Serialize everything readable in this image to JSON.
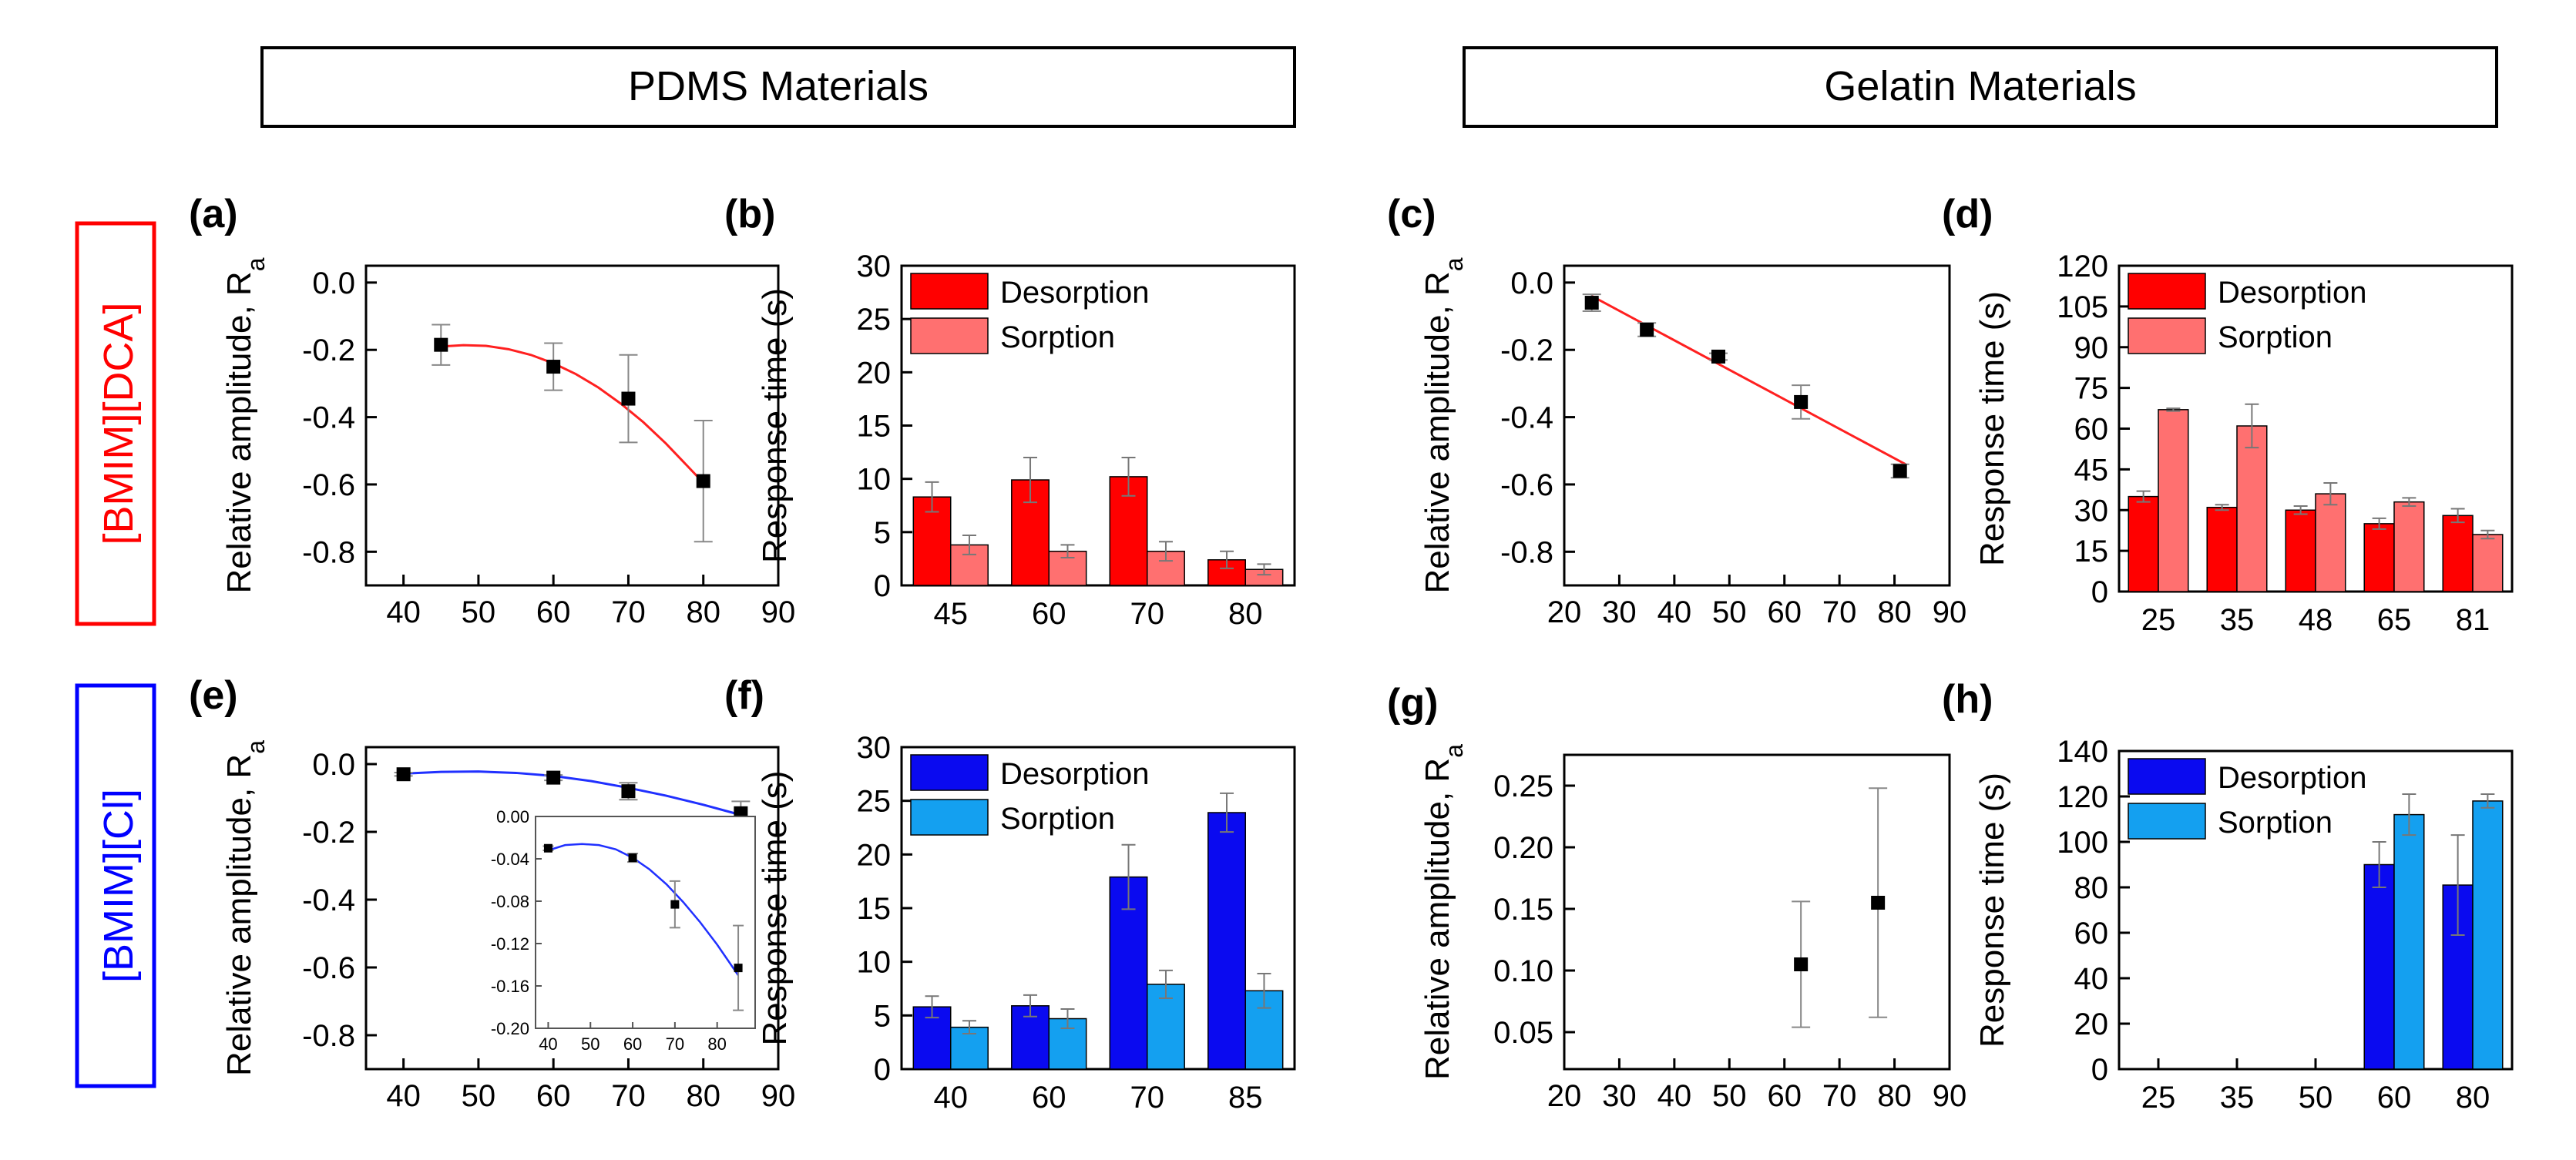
{
  "headers": {
    "pdms": "PDMS Materials",
    "gelatin": "Gelatin Materials"
  },
  "row_labels": {
    "top": "[BMIM][DCA]",
    "bottom": "[BMIM][Cl]"
  },
  "colors": {
    "desorption_red": "#ff0000",
    "sorption_red": "#ff7070",
    "desorption_blue": "#0a0af0",
    "sorption_blue": "#14a0f0",
    "fit_red": "#ff2020",
    "fit_blue": "#2030ff",
    "row_top": "#ff0000",
    "row_bottom": "#0000ff"
  },
  "chart_data": [
    {
      "id": "a",
      "label": "(a)",
      "type": "scatter",
      "ylabel": "Relative amplitude, R",
      "ylabel_sub": "a",
      "xlim": [
        35,
        90
      ],
      "ylim": [
        -0.9,
        0.05
      ],
      "xticks": [
        40,
        50,
        60,
        70,
        80,
        90
      ],
      "yticks": [
        0.0,
        -0.2,
        -0.4,
        -0.6,
        -0.8
      ],
      "ytick_labels": [
        "0.0",
        "-0.2",
        "-0.4",
        "-0.6",
        "-0.8"
      ],
      "points": [
        {
          "x": 45,
          "y": -0.185,
          "err": 0.06
        },
        {
          "x": 60,
          "y": -0.25,
          "err": 0.07
        },
        {
          "x": 70,
          "y": -0.345,
          "err": 0.13
        },
        {
          "x": 80,
          "y": -0.59,
          "err": 0.18
        }
      ],
      "fit": {
        "color_key": "fit_red",
        "x": [
          45,
          48,
          51,
          54,
          57,
          60,
          63,
          66,
          69,
          72,
          75,
          78,
          80
        ],
        "y": [
          -0.19,
          -0.186,
          -0.188,
          -0.198,
          -0.215,
          -0.24,
          -0.272,
          -0.312,
          -0.36,
          -0.415,
          -0.478,
          -0.548,
          -0.595
        ]
      }
    },
    {
      "id": "b",
      "label": "(b)",
      "type": "bar",
      "ylabel": "Response time (s)",
      "ylim": [
        0,
        30
      ],
      "yticks": [
        0,
        5,
        10,
        15,
        20,
        25,
        30
      ],
      "ytick_labels": [
        "0",
        "5",
        "10",
        "15",
        "20",
        "25",
        "30"
      ],
      "categories": [
        "45",
        "60",
        "70",
        "80"
      ],
      "series": [
        {
          "name": "Desorption",
          "color_key": "desorption_red",
          "values": [
            8.3,
            9.9,
            10.2,
            2.4
          ],
          "errors": [
            1.4,
            2.1,
            1.8,
            0.8
          ]
        },
        {
          "name": "Sorption",
          "color_key": "sorption_red",
          "values": [
            3.8,
            3.2,
            3.2,
            1.5
          ],
          "errors": [
            0.9,
            0.6,
            0.9,
            0.5
          ]
        }
      ],
      "legend": "top-left"
    },
    {
      "id": "c",
      "label": "(c)",
      "type": "scatter",
      "ylabel": "Relative amplitude, R",
      "ylabel_sub": "a",
      "xlim": [
        20,
        90
      ],
      "ylim": [
        -0.9,
        0.05
      ],
      "xticks": [
        20,
        30,
        40,
        50,
        60,
        70,
        80,
        90
      ],
      "yticks": [
        0.0,
        -0.2,
        -0.4,
        -0.6,
        -0.8
      ],
      "ytick_labels": [
        "0.0",
        "-0.2",
        "-0.4",
        "-0.6",
        "-0.8"
      ],
      "points": [
        {
          "x": 25,
          "y": -0.06,
          "err": 0.025
        },
        {
          "x": 35,
          "y": -0.14,
          "err": 0.02
        },
        {
          "x": 48,
          "y": -0.22,
          "err": 0.01
        },
        {
          "x": 63,
          "y": -0.355,
          "err": 0.05
        },
        {
          "x": 81,
          "y": -0.56,
          "err": 0.02
        }
      ],
      "fit": {
        "color_key": "fit_red",
        "x": [
          25,
          82
        ],
        "y": [
          -0.04,
          -0.54
        ]
      }
    },
    {
      "id": "d",
      "label": "(d)",
      "type": "bar",
      "ylabel": "Response time (s)",
      "ylim": [
        0,
        120
      ],
      "yticks": [
        0,
        15,
        30,
        45,
        60,
        75,
        90,
        105,
        120
      ],
      "ytick_labels": [
        "0",
        "15",
        "30",
        "45",
        "60",
        "75",
        "90",
        "105",
        "120"
      ],
      "categories": [
        "25",
        "35",
        "48",
        "65",
        "81"
      ],
      "series": [
        {
          "name": "Desorption",
          "color_key": "desorption_red",
          "values": [
            35,
            31,
            30,
            25,
            28
          ],
          "errors": [
            2,
            1,
            1.5,
            2,
            2.5
          ]
        },
        {
          "name": "Sorption",
          "color_key": "sorption_red",
          "values": [
            67,
            61,
            36,
            33,
            21
          ],
          "errors": [
            0.5,
            8,
            4,
            1.5,
            1.5
          ]
        }
      ],
      "legend": "top-left"
    },
    {
      "id": "e",
      "label": "(e)",
      "type": "scatter",
      "ylabel": "Relative amplitude, R",
      "ylabel_sub": "a",
      "xlim": [
        35,
        90
      ],
      "ylim": [
        -0.9,
        0.05
      ],
      "xticks": [
        40,
        50,
        60,
        70,
        80,
        90
      ],
      "yticks": [
        0.0,
        -0.2,
        -0.4,
        -0.6,
        -0.8
      ],
      "ytick_labels": [
        "0.0",
        "-0.2",
        "-0.4",
        "-0.6",
        "-0.8"
      ],
      "points": [
        {
          "x": 40,
          "y": -0.03,
          "err": 0.005
        },
        {
          "x": 60,
          "y": -0.04,
          "err": 0.008
        },
        {
          "x": 70,
          "y": -0.08,
          "err": 0.025
        },
        {
          "x": 85,
          "y": -0.145,
          "err": 0.035
        }
      ],
      "fit": {
        "color_key": "fit_blue",
        "x": [
          40,
          45,
          50,
          55,
          60,
          65,
          70,
          75,
          80,
          85
        ],
        "y": [
          -0.028,
          -0.023,
          -0.022,
          -0.026,
          -0.035,
          -0.05,
          -0.07,
          -0.093,
          -0.12,
          -0.15
        ]
      },
      "inset": {
        "xlim": [
          37,
          89
        ],
        "ylim": [
          -0.2,
          0.0
        ],
        "xticks": [
          40,
          50,
          60,
          70,
          80
        ],
        "yticks": [
          0.0,
          -0.04,
          -0.08,
          -0.12,
          -0.16,
          -0.2
        ],
        "ytick_labels": [
          "0.00",
          "-0.04",
          "-0.08",
          "-0.12",
          "-0.16",
          "-0.20"
        ],
        "points": [
          {
            "x": 40,
            "y": -0.03,
            "err": 0.002
          },
          {
            "x": 60,
            "y": -0.039,
            "err": 0.004
          },
          {
            "x": 70,
            "y": -0.083,
            "err": 0.022
          },
          {
            "x": 85,
            "y": -0.143,
            "err": 0.04
          }
        ],
        "fit": {
          "color_key": "fit_blue",
          "x": [
            40,
            44,
            48,
            52,
            56,
            60,
            64,
            68,
            72,
            76,
            80,
            85
          ],
          "y": [
            -0.032,
            -0.027,
            -0.026,
            -0.027,
            -0.031,
            -0.039,
            -0.05,
            -0.064,
            -0.081,
            -0.1,
            -0.121,
            -0.15
          ]
        }
      }
    },
    {
      "id": "f",
      "label": "(f)",
      "type": "bar",
      "ylabel": "Response time (s)",
      "ylim": [
        0,
        30
      ],
      "yticks": [
        0,
        5,
        10,
        15,
        20,
        25,
        30
      ],
      "ytick_labels": [
        "0",
        "5",
        "10",
        "15",
        "20",
        "25",
        "30"
      ],
      "categories": [
        "40",
        "60",
        "70",
        "85"
      ],
      "series": [
        {
          "name": "Desorption",
          "color_key": "desorption_blue",
          "values": [
            5.8,
            5.9,
            17.9,
            23.9
          ],
          "errors": [
            1.0,
            1.0,
            3.0,
            1.8
          ]
        },
        {
          "name": "Sorption",
          "color_key": "sorption_blue",
          "values": [
            3.9,
            4.7,
            7.9,
            7.3
          ],
          "errors": [
            0.6,
            0.9,
            1.3,
            1.6
          ]
        }
      ],
      "legend": "top-left"
    },
    {
      "id": "g",
      "label": "(g)",
      "type": "scatter",
      "ylabel": "Relative amplitude, R",
      "ylabel_sub": "a",
      "xlim": [
        20,
        90
      ],
      "ylim": [
        0.02,
        0.275
      ],
      "xticks": [
        20,
        30,
        40,
        50,
        60,
        70,
        80,
        90
      ],
      "yticks": [
        0.05,
        0.1,
        0.15,
        0.2,
        0.25
      ],
      "ytick_labels": [
        "0.05",
        "0.10",
        "0.15",
        "0.20",
        "0.25"
      ],
      "points": [
        {
          "x": 63,
          "y": 0.105,
          "err": 0.051
        },
        {
          "x": 77,
          "y": 0.155,
          "err": 0.093
        }
      ]
    },
    {
      "id": "h",
      "label": "(h)",
      "type": "bar",
      "ylabel": "Response time (s)",
      "ylim": [
        0,
        140
      ],
      "yticks": [
        0,
        20,
        40,
        60,
        80,
        100,
        120,
        140
      ],
      "ytick_labels": [
        "0",
        "20",
        "40",
        "60",
        "80",
        "100",
        "120",
        "140"
      ],
      "categories": [
        "25",
        "35",
        "50",
        "60",
        "80"
      ],
      "series": [
        {
          "name": "Desorption",
          "color_key": "desorption_blue",
          "values": [
            null,
            null,
            null,
            90,
            81
          ],
          "errors": [
            null,
            null,
            null,
            10,
            22
          ]
        },
        {
          "name": "Sorption",
          "color_key": "sorption_blue",
          "values": [
            null,
            null,
            null,
            112,
            118
          ],
          "errors": [
            null,
            null,
            null,
            9,
            3
          ]
        }
      ],
      "legend": "top-left"
    }
  ]
}
